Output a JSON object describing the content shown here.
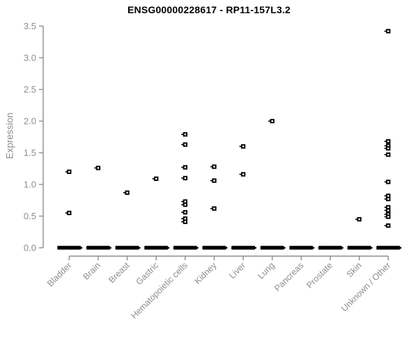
{
  "chart_data": {
    "type": "scatter",
    "title": "ENSG00000228617 - RP11-157L3.2",
    "ylabel": "Expression",
    "xlabel": "",
    "ylim": [
      0,
      3.5
    ],
    "ytick_labels": [
      "0.0",
      "0.5",
      "1.0",
      "1.5",
      "2.0",
      "2.5",
      "3.0",
      "3.5"
    ],
    "grid": false,
    "legend": false,
    "marker": "open-square",
    "categories": [
      "Bladder",
      "Brain",
      "Breast",
      "Gastric",
      "Hematopoietic cells",
      "Kidney",
      "Liver",
      "Lung",
      "Pancreas",
      "Prostate",
      "Skin",
      "Unknown / Other"
    ],
    "series": [
      {
        "category": "Bladder",
        "values": [
          1.2,
          0.55
        ],
        "zero_band": true
      },
      {
        "category": "Brain",
        "values": [
          1.26
        ],
        "zero_band": true
      },
      {
        "category": "Breast",
        "values": [
          0.87
        ],
        "zero_band": true
      },
      {
        "category": "Gastric",
        "values": [
          1.09
        ],
        "zero_band": true
      },
      {
        "category": "Hematopoietic cells",
        "values": [
          1.79,
          1.63,
          1.27,
          1.1,
          0.73,
          0.68,
          0.56,
          0.46,
          0.41
        ],
        "zero_band": true
      },
      {
        "category": "Kidney",
        "values": [
          1.28,
          1.06,
          0.62
        ],
        "zero_band": true
      },
      {
        "category": "Liver",
        "values": [
          1.6,
          1.16
        ],
        "zero_band": true
      },
      {
        "category": "Lung",
        "values": [
          2.0
        ],
        "zero_band": true
      },
      {
        "category": "Pancreas",
        "values": [],
        "zero_band": true
      },
      {
        "category": "Prostate",
        "values": [],
        "zero_band": true
      },
      {
        "category": "Skin",
        "values": [
          0.45
        ],
        "zero_band": true
      },
      {
        "category": "Unknown / Other",
        "values": [
          3.42,
          1.68,
          1.61,
          1.57,
          1.47,
          1.04,
          0.82,
          0.77,
          0.64,
          0.59,
          0.53,
          0.49,
          0.35
        ],
        "zero_band": true
      }
    ]
  },
  "colors": {
    "axis": "#8e8e8e",
    "tick_text": "#8e8e8e",
    "marker": "#000000",
    "title": "#000000",
    "background": "#ffffff"
  }
}
